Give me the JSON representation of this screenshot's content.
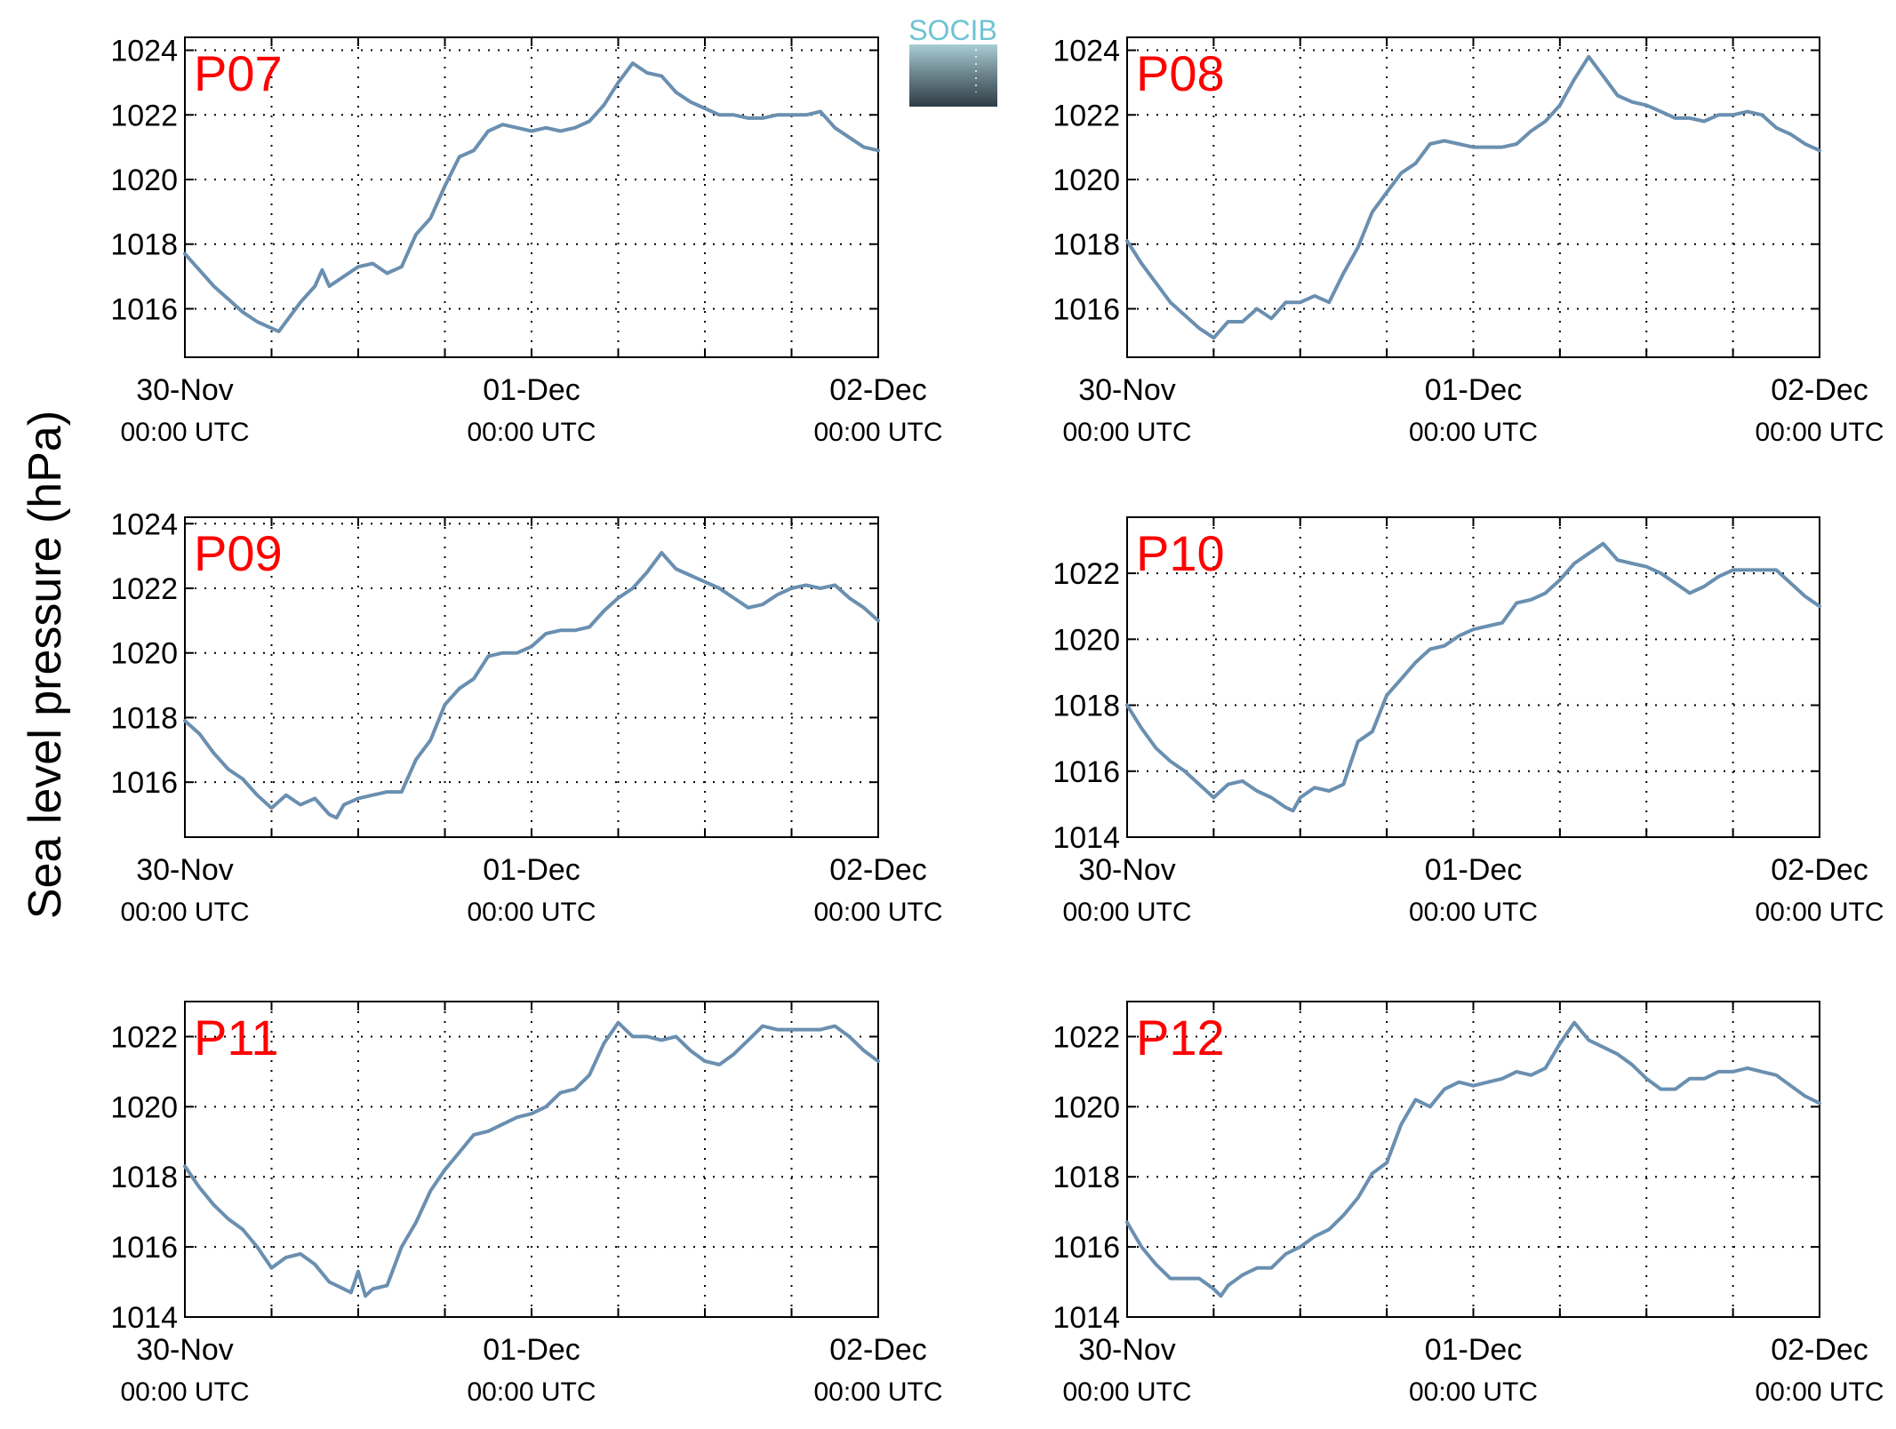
{
  "y_label": "Sea level pressure (hPa)",
  "logo": {
    "text": "SOCIB",
    "accent": "#6ec3d2"
  },
  "colors": {
    "series": "#6a8fb0",
    "panel_label": "#ff0000"
  },
  "x_tick_labels": [
    {
      "date": "30-Nov",
      "time": "00:00 UTC"
    },
    {
      "date": "01-Dec",
      "time": "00:00 UTC"
    },
    {
      "date": "02-Dec",
      "time": "00:00 UTC"
    }
  ],
  "chart_data": [
    {
      "type": "line",
      "title": "P07",
      "xlim": [
        0,
        48
      ],
      "ylim": [
        1014.5,
        1024.4
      ],
      "yticks": [
        1016,
        1018,
        1020,
        1022,
        1024
      ],
      "xlabel": "",
      "ylabel": "Sea level pressure (hPa)",
      "x_ticks_hours": [
        0,
        24,
        48
      ],
      "grid": true,
      "series": [
        {
          "x": [
            0,
            1,
            2,
            3,
            4,
            5,
            6,
            6.5,
            7,
            8,
            9,
            9.5,
            10,
            11,
            12,
            13,
            14,
            15,
            16,
            17,
            18,
            19,
            20,
            21,
            22,
            23,
            24,
            25,
            26,
            27,
            28,
            29,
            30,
            31,
            32,
            33,
            34,
            35,
            36,
            37,
            38,
            39,
            40,
            41,
            42,
            43,
            44,
            45,
            46,
            47,
            48
          ],
          "y": [
            1017.7,
            1017.2,
            1016.7,
            1016.3,
            1015.9,
            1015.6,
            1015.4,
            1015.3,
            1015.6,
            1016.2,
            1016.7,
            1017.2,
            1016.7,
            1017.0,
            1017.3,
            1017.4,
            1017.1,
            1017.3,
            1018.3,
            1018.8,
            1019.8,
            1020.7,
            1020.9,
            1021.5,
            1021.7,
            1021.6,
            1021.5,
            1021.6,
            1021.5,
            1021.6,
            1021.8,
            1022.3,
            1023.0,
            1023.6,
            1023.3,
            1023.2,
            1022.7,
            1022.4,
            1022.2,
            1022.0,
            1022.0,
            1021.9,
            1021.9,
            1022.0,
            1022.0,
            1022.0,
            1022.1,
            1021.6,
            1021.3,
            1021.0,
            1020.9
          ]
        }
      ]
    },
    {
      "type": "line",
      "title": "P08",
      "xlim": [
        0,
        48
      ],
      "ylim": [
        1014.5,
        1024.4
      ],
      "yticks": [
        1016,
        1018,
        1020,
        1022,
        1024
      ],
      "xlabel": "",
      "ylabel": "",
      "x_ticks_hours": [
        0,
        24,
        48
      ],
      "grid": true,
      "series": [
        {
          "x": [
            0,
            1,
            2,
            3,
            4,
            5,
            6,
            7,
            8,
            9,
            10,
            11,
            12,
            13,
            14,
            15,
            16,
            17,
            18,
            19,
            20,
            21,
            22,
            23,
            24,
            25,
            26,
            27,
            28,
            29,
            30,
            31,
            32,
            33,
            34,
            35,
            36,
            37,
            38,
            39,
            40,
            41,
            42,
            43,
            44,
            45,
            46,
            47,
            48
          ],
          "y": [
            1018.1,
            1017.4,
            1016.8,
            1016.2,
            1015.8,
            1015.4,
            1015.1,
            1015.6,
            1015.6,
            1016.0,
            1015.7,
            1016.2,
            1016.2,
            1016.4,
            1016.2,
            1017.1,
            1017.9,
            1019.0,
            1019.6,
            1020.2,
            1020.5,
            1021.1,
            1021.2,
            1021.1,
            1021.0,
            1021.0,
            1021.0,
            1021.1,
            1021.5,
            1021.8,
            1022.3,
            1023.1,
            1023.8,
            1023.2,
            1022.6,
            1022.4,
            1022.3,
            1022.1,
            1021.9,
            1021.9,
            1021.8,
            1022.0,
            1022.0,
            1022.1,
            1022.0,
            1021.6,
            1021.4,
            1021.1,
            1020.9
          ]
        }
      ]
    },
    {
      "type": "line",
      "title": "P09",
      "xlim": [
        0,
        48
      ],
      "ylim": [
        1014.3,
        1024.2
      ],
      "yticks": [
        1016,
        1018,
        1020,
        1022,
        1024
      ],
      "xlabel": "",
      "ylabel": "",
      "x_ticks_hours": [
        0,
        24,
        48
      ],
      "grid": true,
      "series": [
        {
          "x": [
            0,
            1,
            2,
            3,
            4,
            5,
            6,
            7,
            8,
            9,
            10,
            10.5,
            11,
            12,
            13,
            14,
            15,
            16,
            17,
            18,
            19,
            20,
            21,
            22,
            23,
            24,
            25,
            26,
            27,
            28,
            29,
            30,
            31,
            32,
            33,
            34,
            35,
            36,
            37,
            38,
            39,
            40,
            41,
            42,
            43,
            44,
            45,
            46,
            47,
            48
          ],
          "y": [
            1017.9,
            1017.5,
            1016.9,
            1016.4,
            1016.1,
            1015.6,
            1015.2,
            1015.6,
            1015.3,
            1015.5,
            1015.0,
            1014.9,
            1015.3,
            1015.5,
            1015.6,
            1015.7,
            1015.7,
            1016.7,
            1017.3,
            1018.4,
            1018.9,
            1019.2,
            1019.9,
            1020.0,
            1020.0,
            1020.2,
            1020.6,
            1020.7,
            1020.7,
            1020.8,
            1021.3,
            1021.7,
            1022.0,
            1022.5,
            1023.1,
            1022.6,
            1022.4,
            1022.2,
            1022.0,
            1021.7,
            1021.4,
            1021.5,
            1021.8,
            1022.0,
            1022.1,
            1022.0,
            1022.1,
            1021.7,
            1021.4,
            1021.0
          ]
        }
      ]
    },
    {
      "type": "line",
      "title": "P10",
      "xlim": [
        0,
        48
      ],
      "ylim": [
        1014,
        1023.7
      ],
      "yticks": [
        1014,
        1016,
        1018,
        1020,
        1022
      ],
      "xlabel": "",
      "ylabel": "",
      "x_ticks_hours": [
        0,
        24,
        48
      ],
      "grid": true,
      "series": [
        {
          "x": [
            0,
            1,
            2,
            3,
            4,
            5,
            6,
            7,
            8,
            9,
            10,
            11,
            11.5,
            12,
            13,
            14,
            15,
            16,
            17,
            18,
            19,
            20,
            21,
            22,
            23,
            24,
            25,
            26,
            27,
            28,
            29,
            30,
            31,
            32,
            33,
            34,
            35,
            36,
            37,
            38,
            39,
            40,
            41,
            42,
            43,
            44,
            45,
            46,
            47,
            48
          ],
          "y": [
            1018.0,
            1017.3,
            1016.7,
            1016.3,
            1016.0,
            1015.6,
            1015.2,
            1015.6,
            1015.7,
            1015.4,
            1015.2,
            1014.9,
            1014.8,
            1015.2,
            1015.5,
            1015.4,
            1015.6,
            1016.9,
            1017.2,
            1018.3,
            1018.8,
            1019.3,
            1019.7,
            1019.8,
            1020.1,
            1020.3,
            1020.4,
            1020.5,
            1021.1,
            1021.2,
            1021.4,
            1021.8,
            1022.3,
            1022.6,
            1022.9,
            1022.4,
            1022.3,
            1022.2,
            1022.0,
            1021.7,
            1021.4,
            1021.6,
            1021.9,
            1022.1,
            1022.1,
            1022.1,
            1022.1,
            1021.7,
            1021.3,
            1021.0
          ]
        }
      ]
    },
    {
      "type": "line",
      "title": "P11",
      "xlim": [
        0,
        48
      ],
      "ylim": [
        1014,
        1023
      ],
      "yticks": [
        1014,
        1016,
        1018,
        1020,
        1022
      ],
      "xlabel": "",
      "ylabel": "",
      "x_ticks_hours": [
        0,
        24,
        48
      ],
      "grid": true,
      "series": [
        {
          "x": [
            0,
            1,
            2,
            3,
            4,
            5,
            6,
            7,
            8,
            9,
            10,
            11,
            11.5,
            12,
            12.5,
            13,
            14,
            15,
            16,
            17,
            18,
            19,
            20,
            21,
            22,
            23,
            24,
            25,
            26,
            27,
            28,
            29,
            30,
            31,
            32,
            33,
            34,
            35,
            36,
            37,
            38,
            39,
            40,
            41,
            42,
            43,
            44,
            45,
            46,
            47,
            48
          ],
          "y": [
            1018.3,
            1017.7,
            1017.2,
            1016.8,
            1016.5,
            1016.0,
            1015.4,
            1015.7,
            1015.8,
            1015.5,
            1015.0,
            1014.8,
            1014.7,
            1015.3,
            1014.6,
            1014.8,
            1014.9,
            1016.0,
            1016.7,
            1017.6,
            1018.2,
            1018.7,
            1019.2,
            1019.3,
            1019.5,
            1019.7,
            1019.8,
            1020.0,
            1020.4,
            1020.5,
            1020.9,
            1021.8,
            1022.4,
            1022.0,
            1022.0,
            1021.9,
            1022.0,
            1021.6,
            1021.3,
            1021.2,
            1021.5,
            1021.9,
            1022.3,
            1022.2,
            1022.2,
            1022.2,
            1022.2,
            1022.3,
            1022.0,
            1021.6,
            1021.3
          ]
        }
      ]
    },
    {
      "type": "line",
      "title": "P12",
      "xlim": [
        0,
        48
      ],
      "ylim": [
        1014,
        1023
      ],
      "yticks": [
        1014,
        1016,
        1018,
        1020,
        1022
      ],
      "xlabel": "",
      "ylabel": "",
      "x_ticks_hours": [
        0,
        24,
        48
      ],
      "grid": true,
      "series": [
        {
          "x": [
            0,
            1,
            2,
            3,
            4,
            5,
            6,
            6.5,
            7,
            8,
            9,
            10,
            11,
            12,
            13,
            14,
            15,
            16,
            17,
            18,
            19,
            20,
            21,
            22,
            23,
            24,
            25,
            26,
            27,
            28,
            29,
            30,
            31,
            32,
            33,
            34,
            35,
            36,
            37,
            38,
            39,
            40,
            41,
            42,
            43,
            44,
            45,
            46,
            47,
            48
          ],
          "y": [
            1016.7,
            1016.0,
            1015.5,
            1015.1,
            1015.1,
            1015.1,
            1014.8,
            1014.6,
            1014.9,
            1015.2,
            1015.4,
            1015.4,
            1015.8,
            1016.0,
            1016.3,
            1016.5,
            1016.9,
            1017.4,
            1018.1,
            1018.4,
            1019.5,
            1020.2,
            1020.0,
            1020.5,
            1020.7,
            1020.6,
            1020.7,
            1020.8,
            1021.0,
            1020.9,
            1021.1,
            1021.8,
            1022.4,
            1021.9,
            1021.7,
            1021.5,
            1021.2,
            1020.8,
            1020.5,
            1020.5,
            1020.8,
            1020.8,
            1021.0,
            1021.0,
            1021.1,
            1021.0,
            1020.9,
            1020.6,
            1020.3,
            1020.1
          ]
        }
      ]
    }
  ]
}
